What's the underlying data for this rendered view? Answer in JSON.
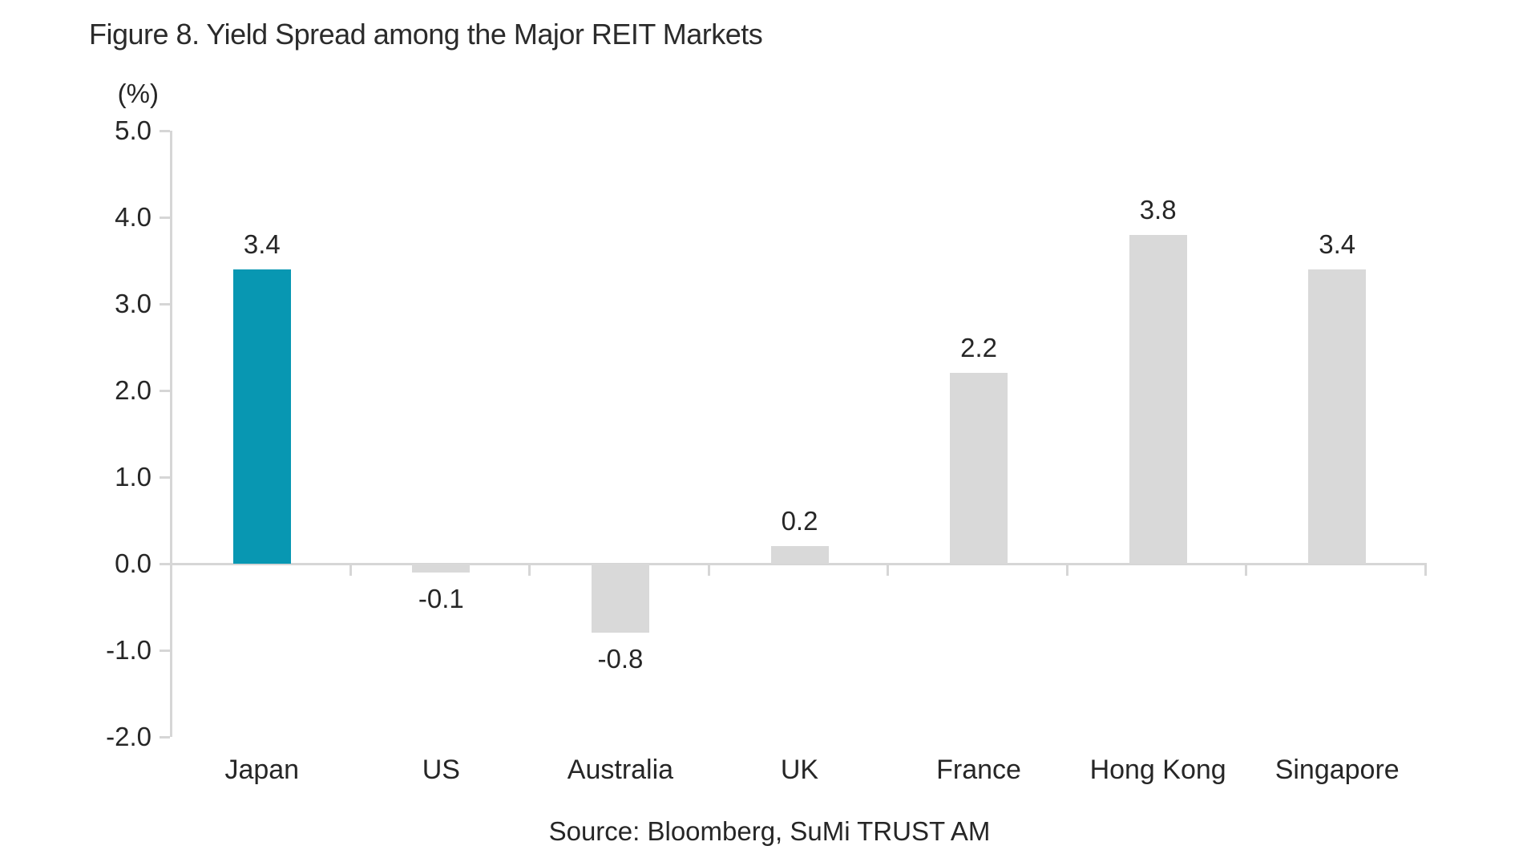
{
  "figure": {
    "title": "Figure 8. Yield Spread among the Major REIT Markets",
    "source": "Source: Bloomberg, SuMi TRUST AM"
  },
  "chart_data": {
    "type": "bar",
    "title": "Figure 8. Yield Spread among the Major REIT Markets",
    "categories": [
      "Japan",
      "US",
      "Australia",
      "UK",
      "France",
      "Hong Kong",
      "Singapore"
    ],
    "values": [
      3.4,
      -0.1,
      -0.8,
      0.2,
      2.2,
      3.8,
      3.4
    ],
    "value_labels": [
      "3.4",
      "-0.1",
      "-0.8",
      "0.2",
      "2.2",
      "3.8",
      "3.4"
    ],
    "xlabel": "",
    "ylabel": "(%)",
    "ylim": [
      -2.0,
      5.0
    ],
    "ytick_step": 1.0,
    "ytick_labels": [
      "5.0",
      "4.0",
      "3.0",
      "2.0",
      "1.0",
      "0.0",
      "-1.0",
      "-2.0"
    ],
    "grid": false,
    "legend": false,
    "highlight_category": "Japan",
    "source": "Source: Bloomberg, SuMi TRUST AM",
    "colors": {
      "highlight_bar": "#0897b2",
      "default_bar": "#d9d9d9",
      "axis": "#d6d6d6",
      "text": "#262626"
    }
  }
}
